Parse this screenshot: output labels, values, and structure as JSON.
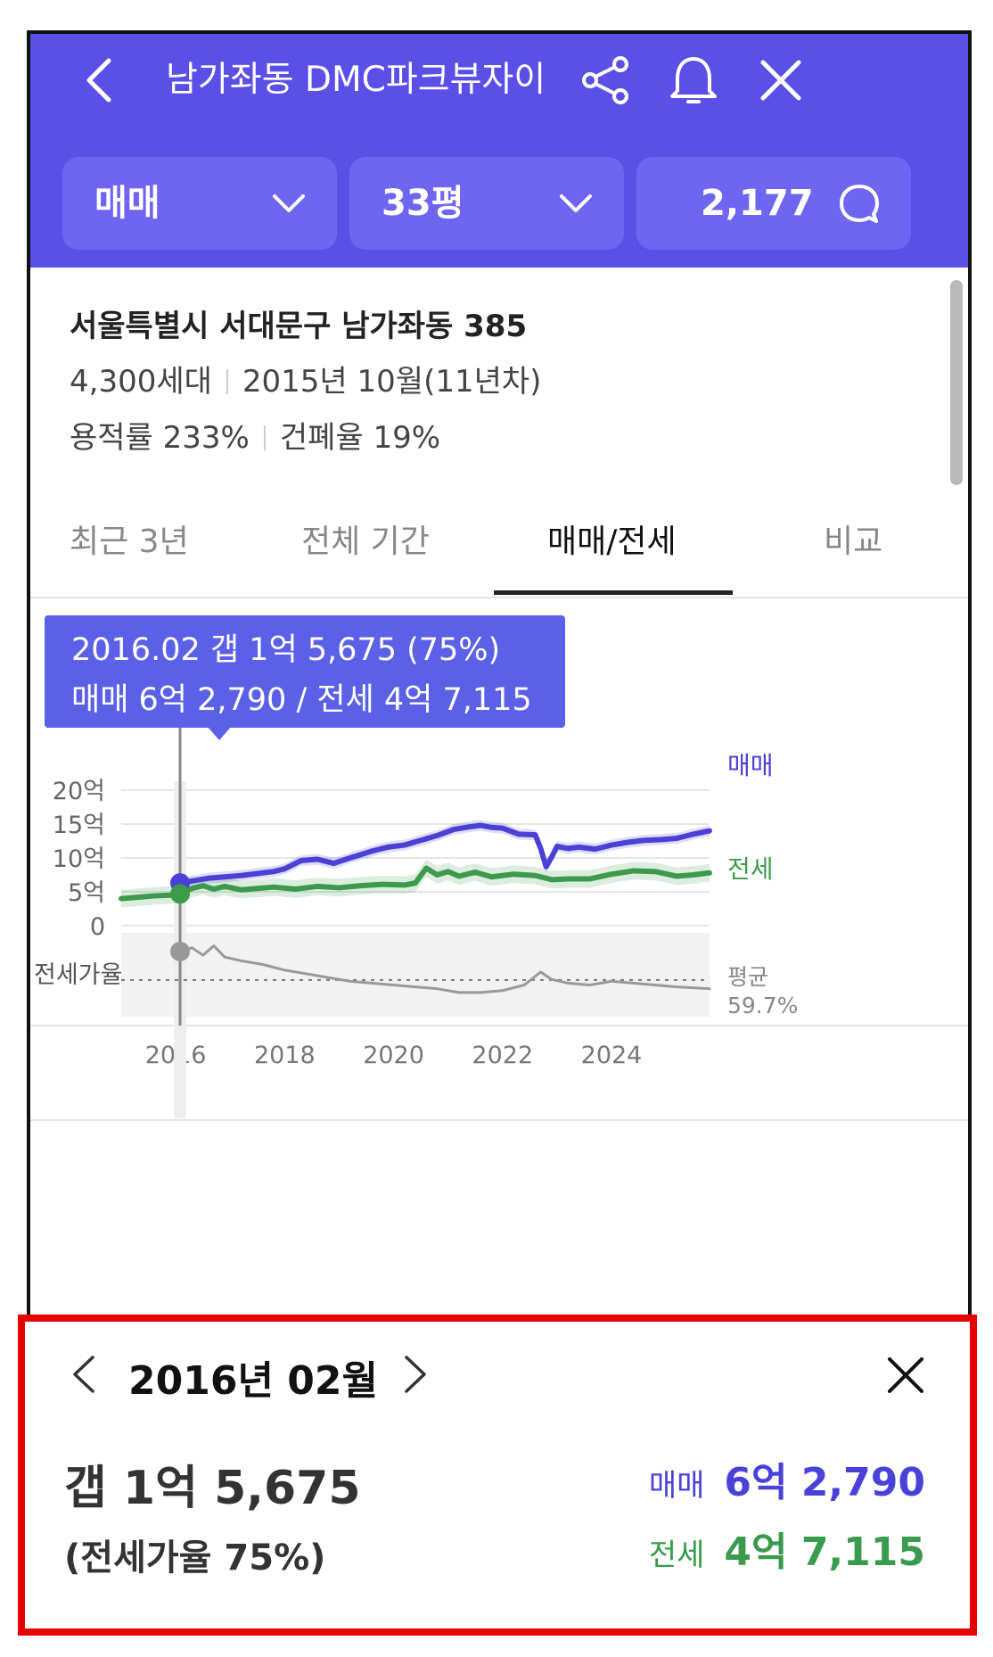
{
  "header": {
    "title": "남가좌동 DMC파크뷰자이",
    "deal_type": "매매",
    "size": "33평",
    "count": "2,177",
    "icons": {
      "back": "back-chevron-icon",
      "share": "share-icon",
      "alarm": "bell-icon",
      "close": "close-icon",
      "chat": "chat-bubble-icon"
    }
  },
  "info": {
    "address": "서울특별시 서대문구 남가좌동 385",
    "households": "4,300세대",
    "built": "2015년 10월(11년차)",
    "far": "용적률 233%",
    "bcr": "건폐율 19%"
  },
  "tabs": [
    {
      "label": "최근 3년",
      "active": false
    },
    {
      "label": "전체 기간",
      "active": false
    },
    {
      "label": "매매/전세",
      "active": true
    },
    {
      "label": "비교",
      "active": false
    }
  ],
  "tooltip": {
    "line1": "2016.02  갭 1억 5,675 (75%)",
    "line2": "매매 6억 2,790 / 전세 4억 7,115"
  },
  "chart_data": {
    "type": "line",
    "y_tick_labels": [
      "20억",
      "15억",
      "10억",
      "5억",
      "0"
    ],
    "ylim": [
      0,
      20
    ],
    "x_tick_labels": [
      "2016",
      "2018",
      "2020",
      "2022",
      "2024"
    ],
    "xlim": [
      2015.0,
      2025.8
    ],
    "ratio_label": "전세가율",
    "ratio_avg_label": "평균",
    "ratio_avg_value": "59.7%",
    "ratio_avg": 59.7,
    "selected_x": 2016.08,
    "colors": {
      "sale": "#4a40d6",
      "rent": "#3c9a4b",
      "ratio": "#999999"
    },
    "series": [
      {
        "name": "매매",
        "x": [
          2016.08,
          2016.3,
          2016.6,
          2016.9,
          2017.2,
          2017.5,
          2017.8,
          2018.0,
          2018.3,
          2018.6,
          2018.9,
          2019.2,
          2019.4,
          2019.6,
          2019.9,
          2020.2,
          2020.5,
          2020.8,
          2021.1,
          2021.4,
          2021.6,
          2021.8,
          2022.0,
          2022.3,
          2022.6,
          2022.7,
          2022.8,
          2022.9,
          2023.0,
          2023.2,
          2023.4,
          2023.7,
          2024.0,
          2024.3,
          2024.6,
          2024.9,
          2025.2,
          2025.5,
          2025.8
        ],
        "values": [
          6.3,
          6.6,
          7.0,
          7.2,
          7.4,
          7.7,
          8.0,
          8.4,
          9.6,
          9.8,
          9.2,
          10.0,
          10.5,
          11.0,
          11.6,
          11.9,
          12.6,
          13.3,
          14.2,
          14.6,
          14.8,
          14.5,
          14.4,
          13.5,
          13.4,
          11.4,
          8.7,
          10.1,
          11.7,
          11.4,
          11.6,
          11.3,
          11.9,
          12.3,
          12.6,
          12.7,
          12.9,
          13.5,
          14.0
        ]
      },
      {
        "name": "전세",
        "x": [
          2015.0,
          2015.3,
          2015.6,
          2015.9,
          2016.08,
          2016.3,
          2016.5,
          2016.7,
          2016.9,
          2017.2,
          2017.5,
          2017.8,
          2018.2,
          2018.6,
          2019.0,
          2019.4,
          2019.8,
          2020.2,
          2020.4,
          2020.6,
          2020.8,
          2021.0,
          2021.2,
          2021.5,
          2021.8,
          2022.2,
          2022.6,
          2022.9,
          2023.2,
          2023.6,
          2024.0,
          2024.4,
          2024.8,
          2025.2,
          2025.5,
          2025.8
        ],
        "values": [
          4.0,
          4.2,
          4.4,
          4.5,
          4.7,
          5.5,
          5.9,
          5.4,
          5.8,
          5.3,
          5.5,
          5.7,
          5.4,
          5.8,
          5.6,
          5.9,
          6.1,
          6.0,
          6.3,
          8.5,
          7.5,
          8.0,
          7.3,
          7.9,
          7.2,
          7.6,
          7.4,
          6.8,
          6.9,
          6.9,
          7.6,
          8.1,
          8.0,
          7.3,
          7.5,
          7.8
        ]
      },
      {
        "name": "전세가율",
        "x": [
          2016.08,
          2016.3,
          2016.5,
          2016.7,
          2016.9,
          2017.2,
          2017.6,
          2018.0,
          2018.4,
          2018.8,
          2019.2,
          2019.6,
          2020.0,
          2020.4,
          2020.8,
          2021.2,
          2021.6,
          2022.0,
          2022.4,
          2022.7,
          2022.9,
          2023.2,
          2023.6,
          2024.0,
          2024.4,
          2024.8,
          2025.2,
          2025.8
        ],
        "values": [
          75,
          77,
          73,
          78,
          72,
          70,
          68,
          65,
          63,
          61,
          59,
          58,
          57,
          56,
          55,
          53,
          53,
          54,
          57,
          64,
          60,
          58,
          57,
          59,
          58,
          57,
          56,
          55
        ]
      }
    ]
  },
  "card": {
    "month": "2016년 02월",
    "gap": "갭 1억 5,675",
    "ratio": "(전세가율 75%)",
    "sale_label": "매매",
    "sale_value": "6억 2,790",
    "rent_label": "전세",
    "rent_value": "4억 7,115"
  }
}
